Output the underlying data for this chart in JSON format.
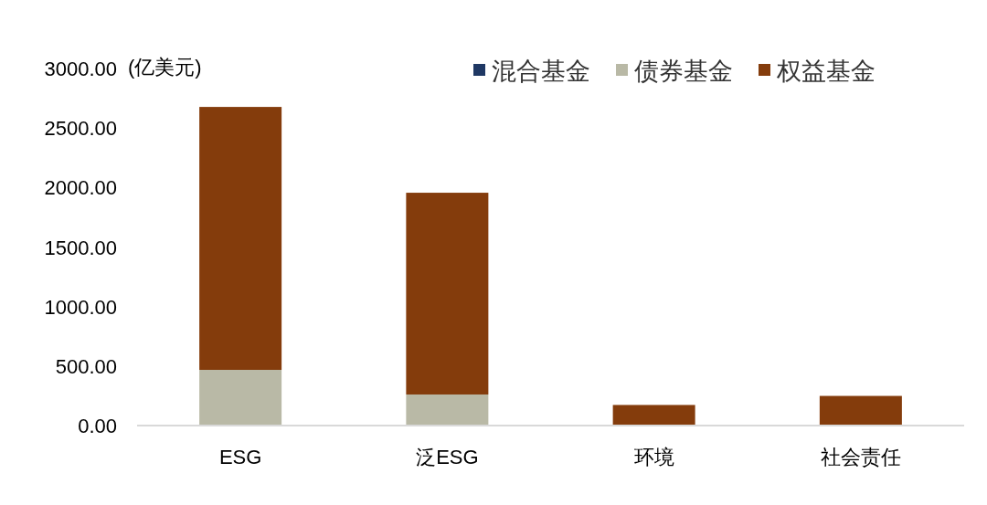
{
  "chart_data": {
    "type": "bar",
    "stacked": true,
    "ylabel": "(亿美元)",
    "categories": [
      "ESG",
      "泛ESG",
      "环境",
      "社会责任"
    ],
    "series": [
      {
        "name": "混合基金",
        "color": "#1f3864",
        "values": [
          0,
          0,
          0,
          0
        ]
      },
      {
        "name": "债券基金",
        "color": "#b9b9a6",
        "values": [
          468,
          261,
          0,
          0
        ]
      },
      {
        "name": "权益基金",
        "color": "#843c0c",
        "values": [
          2209,
          1695,
          173,
          249
        ]
      }
    ],
    "ylim": [
      0,
      3000
    ],
    "yticks": [
      {
        "value": 0,
        "label": "0.00"
      },
      {
        "value": 500,
        "label": "500.00"
      },
      {
        "value": 1000,
        "label": "1000.00"
      },
      {
        "value": 1500,
        "label": "1500.00"
      },
      {
        "value": 2000,
        "label": "2000.00"
      },
      {
        "value": 2500,
        "label": "2500.00"
      },
      {
        "value": 3000,
        "label": "3000.00"
      }
    ],
    "legend": "top right"
  }
}
